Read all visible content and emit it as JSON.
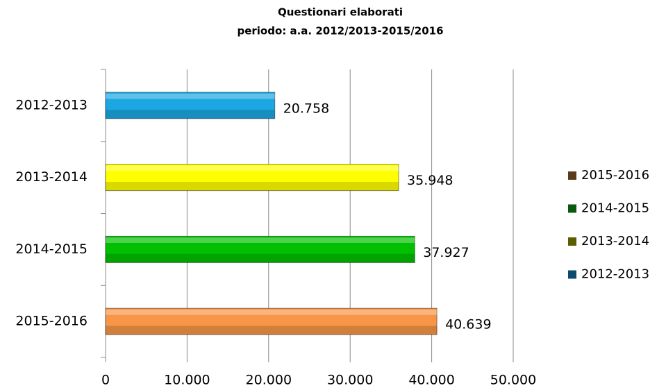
{
  "chart_data": {
    "type": "hbar",
    "title": "Questionari elaborati",
    "subtitle": "periodo: a.a. 2012/2013-2015/2016",
    "categories": [
      "2012-2013",
      "2013-2014",
      "2014-2015",
      "2015-2016"
    ],
    "values": [
      20758,
      35948,
      37927,
      40639
    ],
    "value_labels": [
      "20.758",
      "35.948",
      "37.927",
      "40.639"
    ],
    "colors": [
      "#1ba7e1",
      "#ffff00",
      "#00c000",
      "#f79646"
    ],
    "legend_colors": [
      "#0c4a6e",
      "#5c5c00",
      "#0b5a0b",
      "#5a3a1c"
    ],
    "legend": "right",
    "xlim": [
      0,
      50000
    ],
    "xticks": [
      0,
      {
        "value": 10000,
        "label": "10.000"
      },
      {
        "value": 20000,
        "label": "20.000"
      },
      {
        "value": 30000,
        "label": "30.000"
      },
      {
        "value": 40000,
        "label": "40.000"
      },
      {
        "value": 50000,
        "label": "50.000"
      }
    ],
    "grid": true
  }
}
